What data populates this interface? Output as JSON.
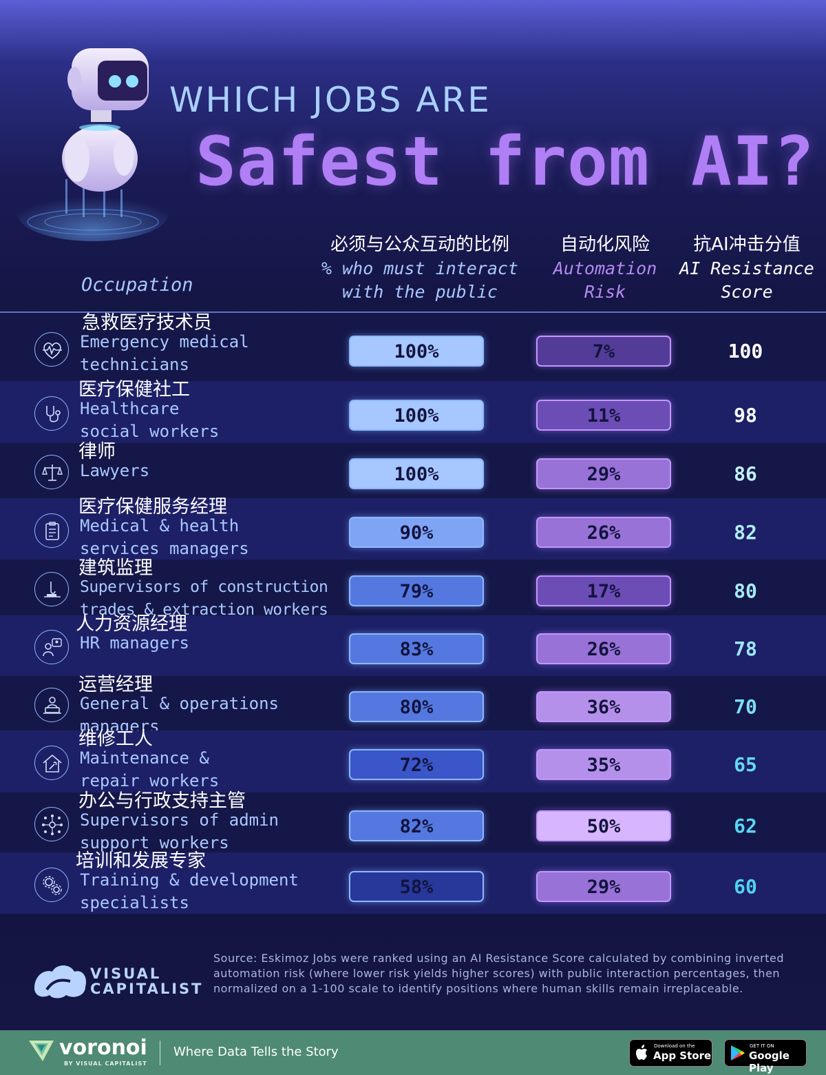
{
  "header": {
    "title_line1": "WHICH JOBS ARE",
    "title_line2": "Safest from AI?"
  },
  "columns": {
    "occupation": "Occupation",
    "public_cn": "必须与公众互动的比例",
    "public_en_1": "% who must interact",
    "public_en_2": "with the public",
    "risk_cn": "自动化风险",
    "risk_en_1": "Automation",
    "risk_en_2": "Risk",
    "score_cn": "抗AI冲击分值",
    "score_en_1": "AI Resistance",
    "score_en_2": "Score"
  },
  "chart_data": {
    "type": "table",
    "columns": [
      "Occupation",
      "% who must interact with the public",
      "Automation Risk",
      "AI Resistance Score"
    ],
    "rows": [
      {
        "occupation_cn": "急救医疗技术员",
        "occupation_en_1": "Emergency medical",
        "occupation_en_2": "technicians",
        "public_pct": 100,
        "public_label": "100%",
        "risk_pct": 7,
        "risk_label": "7%",
        "score": 100,
        "score_label": "100",
        "icon": "heartbeat-icon"
      },
      {
        "occupation_cn": "医疗保健社工",
        "occupation_en_1": "Healthcare",
        "occupation_en_2": "social workers",
        "public_pct": 100,
        "public_label": "100%",
        "risk_pct": 11,
        "risk_label": "11%",
        "score": 98,
        "score_label": "98",
        "icon": "stethoscope-icon"
      },
      {
        "occupation_cn": "律师",
        "occupation_en_1": "Lawyers",
        "occupation_en_2": "",
        "public_pct": 100,
        "public_label": "100%",
        "risk_pct": 29,
        "risk_label": "29%",
        "score": 86,
        "score_label": "86",
        "icon": "scales-icon"
      },
      {
        "occupation_cn": "医疗保健服务经理",
        "occupation_en_1": "Medical & health",
        "occupation_en_2": "services managers",
        "public_pct": 90,
        "public_label": "90%",
        "risk_pct": 26,
        "risk_label": "26%",
        "score": 82,
        "score_label": "82",
        "icon": "clipboard-icon"
      },
      {
        "occupation_cn": "建筑监理",
        "occupation_en_1": "Supervisors of construction",
        "occupation_en_2": "trades & extraction workers",
        "public_pct": 79,
        "public_label": "79%",
        "risk_pct": 17,
        "risk_label": "17%",
        "score": 80,
        "score_label": "80",
        "icon": "crane-icon"
      },
      {
        "occupation_cn": "人力资源经理",
        "occupation_en_1": "HR managers",
        "occupation_en_2": "",
        "public_pct": 83,
        "public_label": "83%",
        "risk_pct": 26,
        "risk_label": "26%",
        "score": 78,
        "score_label": "78",
        "icon": "hr-people-icon"
      },
      {
        "occupation_cn": "运营经理",
        "occupation_en_1": "General & operations",
        "occupation_en_2": "managers",
        "public_pct": 80,
        "public_label": "80%",
        "risk_pct": 36,
        "risk_label": "36%",
        "score": 70,
        "score_label": "70",
        "icon": "laptop-person-icon"
      },
      {
        "occupation_cn": "维修工人",
        "occupation_en_1": "Maintenance &",
        "occupation_en_2": "repair workers",
        "public_pct": 72,
        "public_label": "72%",
        "risk_pct": 35,
        "risk_label": "35%",
        "score": 65,
        "score_label": "65",
        "icon": "house-repair-icon"
      },
      {
        "occupation_cn": "办公与行政支持主管",
        "occupation_en_1": "Supervisors of admin",
        "occupation_en_2": "support workers",
        "public_pct": 82,
        "public_label": "82%",
        "risk_pct": 50,
        "risk_label": "50%",
        "score": 62,
        "score_label": "62",
        "icon": "network-icon"
      },
      {
        "occupation_cn": "培训和发展专家",
        "occupation_en_1": "Training & development",
        "occupation_en_2": "specialists",
        "public_pct": 58,
        "public_label": "58%",
        "risk_pct": 29,
        "risk_label": "29%",
        "score": 60,
        "score_label": "60",
        "icon": "gears-icon"
      }
    ]
  },
  "colors": {
    "public_scale": [
      "#27389a",
      "#3a56c8",
      "#5578e0",
      "#7fa3f5",
      "#a6c7ff"
    ],
    "risk_scale": [
      "#533c97",
      "#6c4cb5",
      "#9872d6",
      "#b590ea",
      "#d8b6ff"
    ],
    "score_high": "#ffffff",
    "score_low": "#4fd4f0",
    "title_purple": "#b07ef5"
  },
  "source": {
    "text": "Source: Eskimoz Jobs were ranked using an AI Resistance Score calculated by combining inverted automation risk (where lower risk yields higher scores) with public interaction percentages, then normalized on a 1-100 scale to identify positions where human skills remain irreplaceable."
  },
  "branding": {
    "vc_line1": "VISUAL",
    "vc_line2": "CAPITALIST",
    "voronoi": "voronoi",
    "voronoi_by": "BY VISUAL CAPITALIST",
    "tagline": "Where Data Tells the Story",
    "appstore_small": "Download on the",
    "appstore_big": "App Store",
    "googleplay_small": "GET IT ON",
    "googleplay_big": "Google Play"
  }
}
